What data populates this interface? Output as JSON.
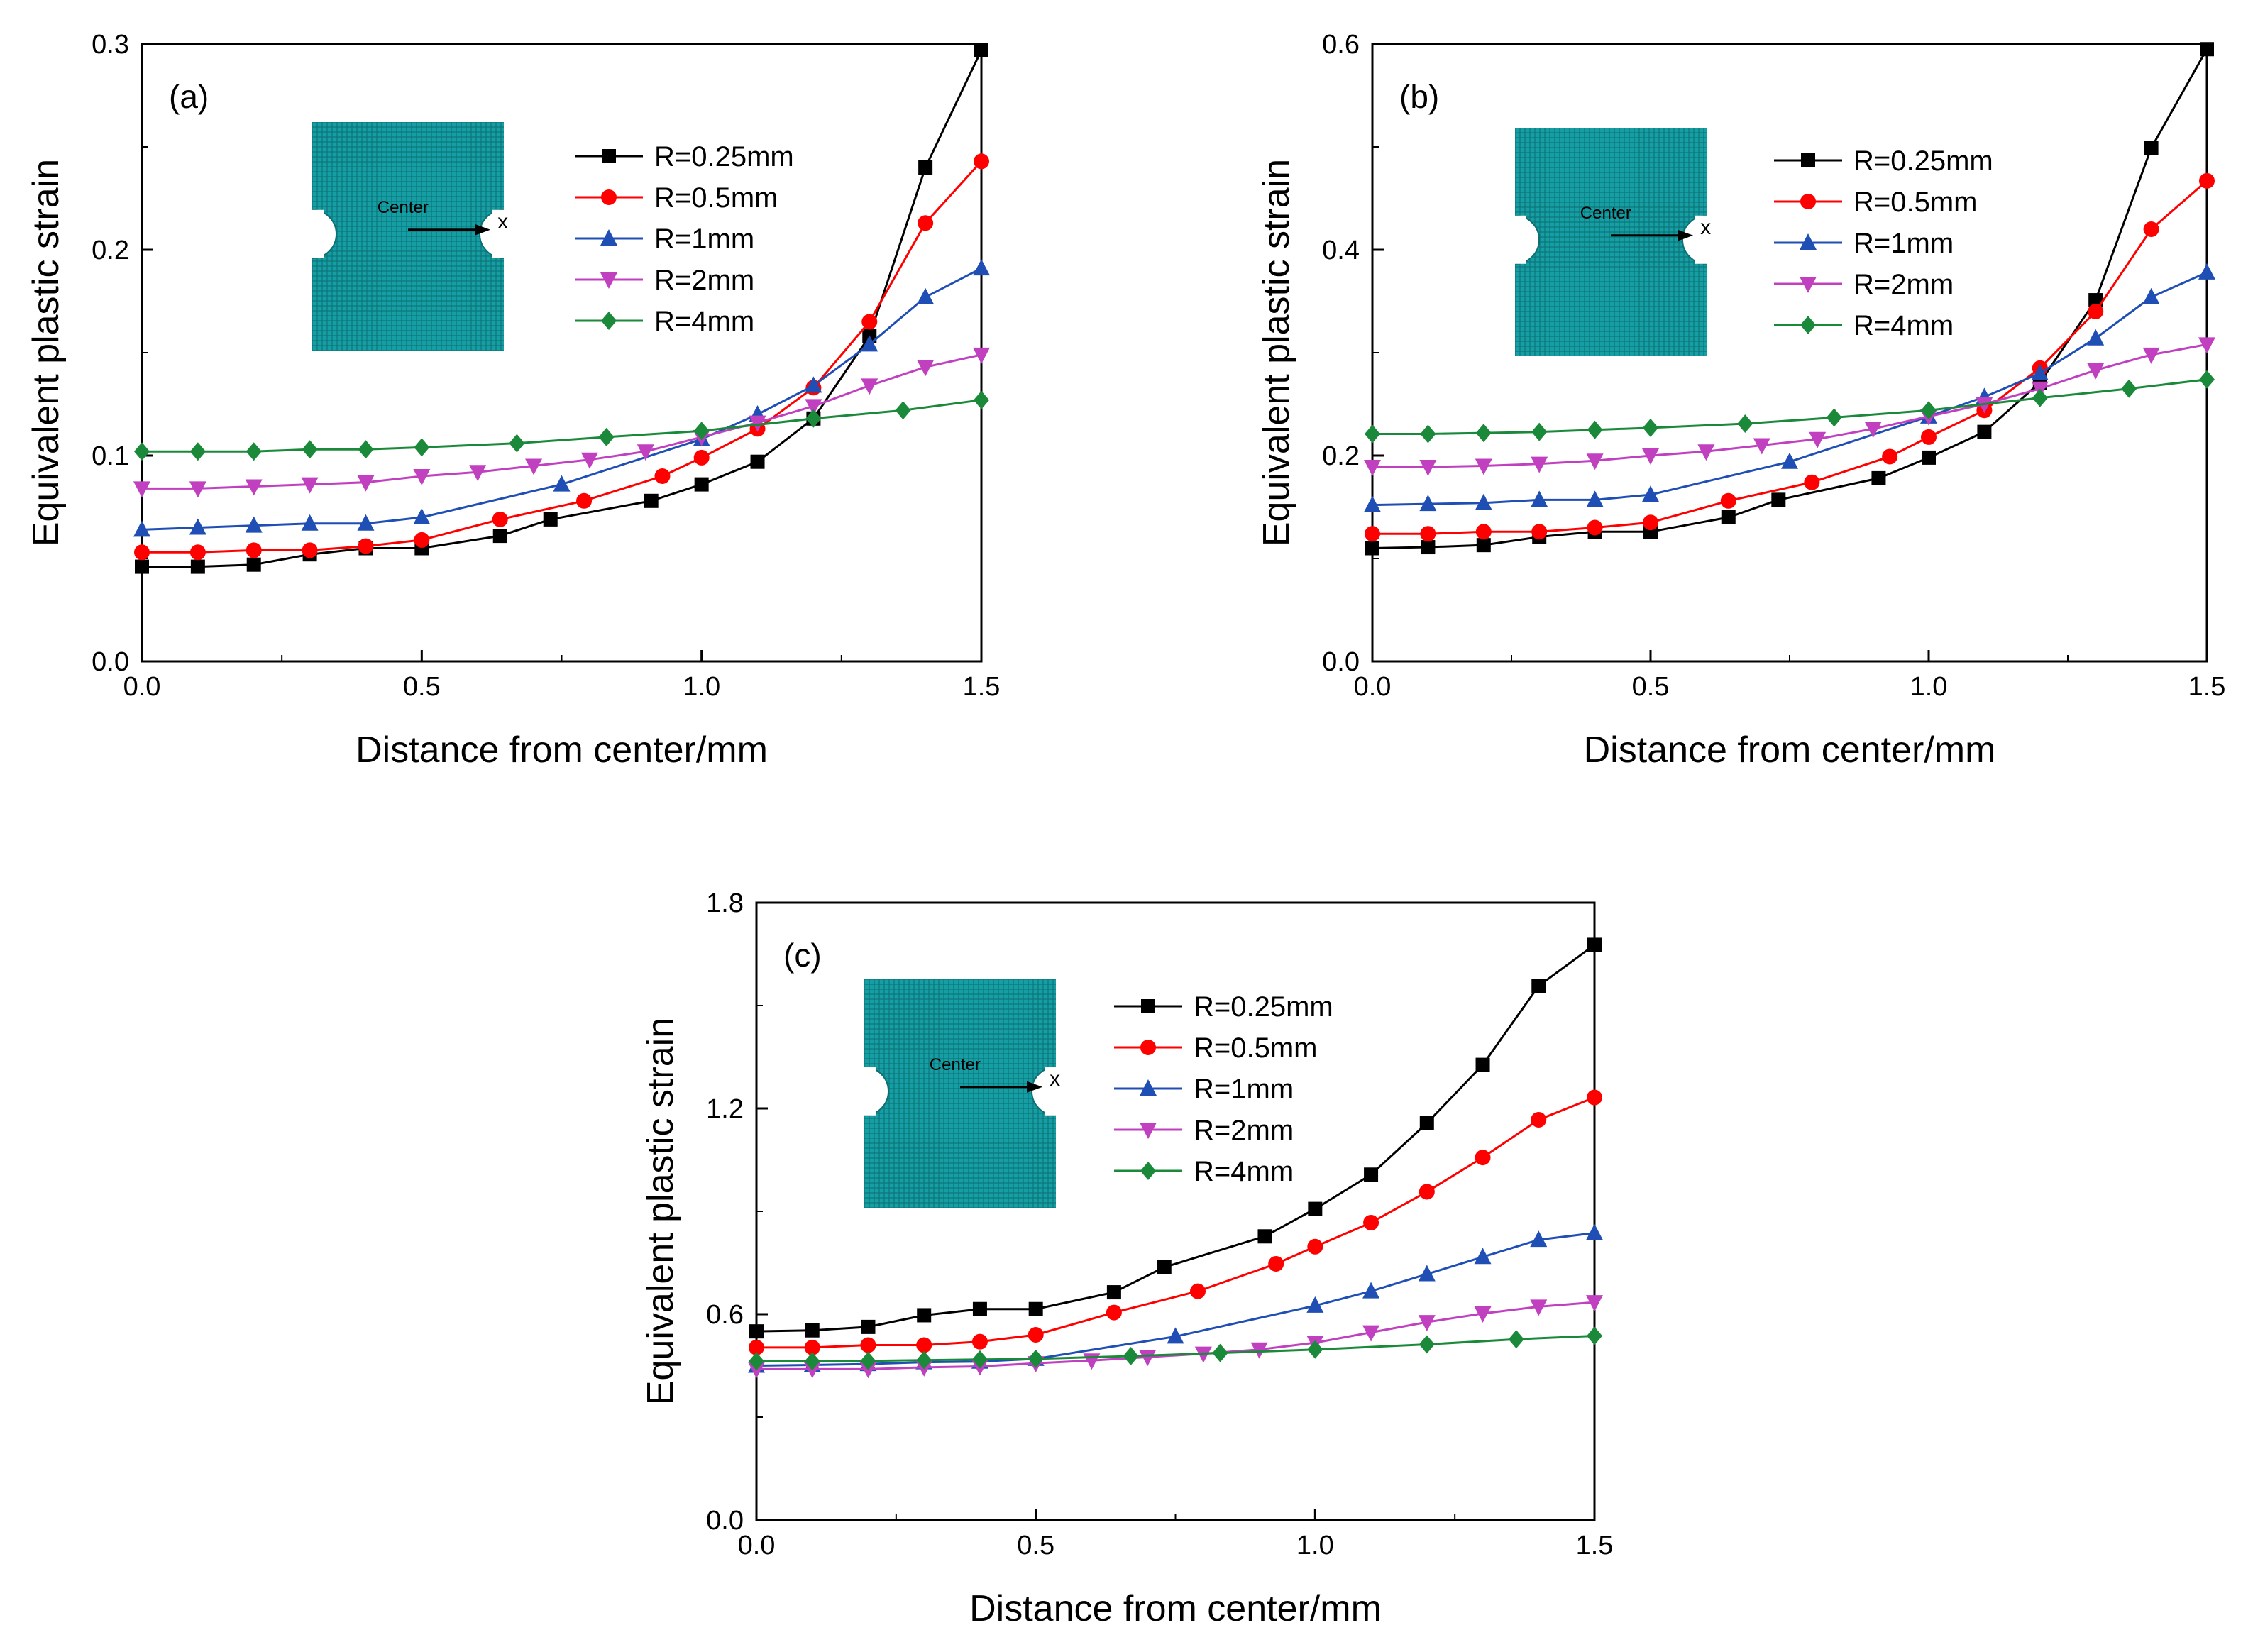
{
  "figure": {
    "x_unit_note": "Distance from center/mm"
  },
  "chart_data": [
    {
      "type": "line",
      "panel_label": "(a)",
      "xlabel": "Distance from center/mm",
      "ylabel": "Equivalent plastic strain",
      "xlim": [
        0,
        1.5
      ],
      "ylim": [
        0,
        0.3
      ],
      "xticks": [
        "0.0",
        "0.5",
        "1.0",
        "1.5"
      ],
      "yticks": [
        "0.0",
        "0.1",
        "0.2",
        "0.3"
      ],
      "legend_position": "upper-middle",
      "inset": {
        "center_label": "Center",
        "axis_label": "x"
      },
      "series": [
        {
          "name": "R=0.25mm",
          "color": "#000000",
          "marker": "square",
          "x": [
            0,
            0.1,
            0.2,
            0.3,
            0.4,
            0.5,
            0.64,
            0.73,
            0.91,
            1.0,
            1.1,
            1.2,
            1.3,
            1.4,
            1.5
          ],
          "y": [
            0.046,
            0.046,
            0.047,
            0.052,
            0.055,
            0.055,
            0.061,
            0.069,
            0.078,
            0.086,
            0.097,
            0.118,
            0.158,
            0.24,
            0.297
          ]
        },
        {
          "name": "R=0.5mm",
          "color": "#ff0000",
          "marker": "circle",
          "x": [
            0,
            0.1,
            0.2,
            0.3,
            0.4,
            0.5,
            0.64,
            0.79,
            0.93,
            1.0,
            1.1,
            1.2,
            1.3,
            1.4,
            1.5
          ],
          "y": [
            0.053,
            0.053,
            0.054,
            0.054,
            0.056,
            0.059,
            0.069,
            0.078,
            0.09,
            0.099,
            0.113,
            0.133,
            0.165,
            0.213,
            0.243
          ]
        },
        {
          "name": "R=1mm",
          "color": "#1f4fb4",
          "marker": "triangle-up",
          "x": [
            0,
            0.1,
            0.2,
            0.3,
            0.4,
            0.5,
            0.75,
            1.0,
            1.1,
            1.2,
            1.3,
            1.4,
            1.5
          ],
          "y": [
            0.064,
            0.065,
            0.066,
            0.067,
            0.067,
            0.07,
            0.086,
            0.108,
            0.12,
            0.134,
            0.154,
            0.177,
            0.191
          ]
        },
        {
          "name": "R=2mm",
          "color": "#c040c0",
          "marker": "triangle-down",
          "x": [
            0,
            0.1,
            0.2,
            0.3,
            0.4,
            0.5,
            0.6,
            0.7,
            0.8,
            0.9,
            1.0,
            1.1,
            1.2,
            1.3,
            1.4,
            1.5
          ],
          "y": [
            0.084,
            0.084,
            0.085,
            0.086,
            0.087,
            0.09,
            0.092,
            0.095,
            0.098,
            0.102,
            0.109,
            0.116,
            0.124,
            0.134,
            0.143,
            0.149
          ]
        },
        {
          "name": "R=4mm",
          "color": "#1a8a3a",
          "marker": "diamond",
          "x": [
            0,
            0.1,
            0.2,
            0.3,
            0.4,
            0.5,
            0.67,
            0.83,
            1.0,
            1.2,
            1.36,
            1.5
          ],
          "y": [
            0.102,
            0.102,
            0.102,
            0.103,
            0.103,
            0.104,
            0.106,
            0.109,
            0.112,
            0.118,
            0.122,
            0.127
          ]
        }
      ]
    },
    {
      "type": "line",
      "panel_label": "(b)",
      "xlabel": "Distance from center/mm",
      "ylabel": "Equivalent plastic strain",
      "xlim": [
        0,
        1.5
      ],
      "ylim": [
        0,
        0.6
      ],
      "xticks": [
        "0.0",
        "0.5",
        "1.0",
        "1.5"
      ],
      "yticks": [
        "0.0",
        "0.2",
        "0.4",
        "0.6"
      ],
      "legend_position": "upper-middle",
      "inset": {
        "center_label": "Center",
        "axis_label": "x"
      },
      "series": [
        {
          "name": "R=0.25mm",
          "color": "#000000",
          "marker": "square",
          "x": [
            0,
            0.1,
            0.2,
            0.3,
            0.4,
            0.5,
            0.64,
            0.73,
            0.91,
            1.0,
            1.1,
            1.2,
            1.3,
            1.4,
            1.5
          ],
          "y": [
            0.11,
            0.111,
            0.113,
            0.121,
            0.126,
            0.126,
            0.14,
            0.157,
            0.178,
            0.198,
            0.223,
            0.271,
            0.351,
            0.499,
            0.595
          ]
        },
        {
          "name": "R=0.5mm",
          "color": "#ff0000",
          "marker": "circle",
          "x": [
            0,
            0.1,
            0.2,
            0.3,
            0.4,
            0.5,
            0.64,
            0.79,
            0.93,
            1.0,
            1.1,
            1.2,
            1.3,
            1.4,
            1.5
          ],
          "y": [
            0.124,
            0.124,
            0.126,
            0.126,
            0.13,
            0.135,
            0.156,
            0.174,
            0.199,
            0.218,
            0.244,
            0.285,
            0.34,
            0.42,
            0.467
          ]
        },
        {
          "name": "R=1mm",
          "color": "#1f4fb4",
          "marker": "triangle-up",
          "x": [
            0,
            0.1,
            0.2,
            0.3,
            0.4,
            0.5,
            0.75,
            1.0,
            1.1,
            1.2,
            1.3,
            1.4,
            1.5
          ],
          "y": [
            0.152,
            0.153,
            0.154,
            0.157,
            0.157,
            0.162,
            0.194,
            0.238,
            0.257,
            0.28,
            0.314,
            0.354,
            0.378
          ]
        },
        {
          "name": "R=2mm",
          "color": "#c040c0",
          "marker": "triangle-down",
          "x": [
            0,
            0.1,
            0.2,
            0.3,
            0.4,
            0.5,
            0.6,
            0.7,
            0.8,
            0.9,
            1.0,
            1.1,
            1.2,
            1.3,
            1.4,
            1.5
          ],
          "y": [
            0.189,
            0.189,
            0.19,
            0.192,
            0.195,
            0.2,
            0.204,
            0.21,
            0.216,
            0.226,
            0.238,
            0.25,
            0.265,
            0.283,
            0.298,
            0.308
          ]
        },
        {
          "name": "R=4mm",
          "color": "#1a8a3a",
          "marker": "diamond",
          "x": [
            0,
            0.1,
            0.2,
            0.3,
            0.4,
            0.5,
            0.67,
            0.83,
            1.0,
            1.2,
            1.36,
            1.5
          ],
          "y": [
            0.221,
            0.221,
            0.222,
            0.223,
            0.225,
            0.227,
            0.231,
            0.237,
            0.244,
            0.256,
            0.265,
            0.274
          ]
        }
      ]
    },
    {
      "type": "line",
      "panel_label": "(c)",
      "xlabel": "Distance from center/mm",
      "ylabel": "Equivalent plastic strain",
      "xlim": [
        0,
        1.5
      ],
      "ylim": [
        0,
        1.8
      ],
      "xticks": [
        "0.0",
        "0.5",
        "1.0",
        "1.5"
      ],
      "yticks": [
        "0.0",
        "0.6",
        "1.2",
        "1.8"
      ],
      "legend_position": "upper-middle",
      "inset": {
        "center_label": "Center",
        "axis_label": "x"
      },
      "series": [
        {
          "name": "R=0.25mm",
          "color": "#000000",
          "marker": "square",
          "x": [
            0,
            0.1,
            0.2,
            0.3,
            0.4,
            0.5,
            0.64,
            0.73,
            0.91,
            1.0,
            1.1,
            1.2,
            1.3,
            1.4,
            1.5
          ],
          "y": [
            0.55,
            0.553,
            0.563,
            0.597,
            0.615,
            0.615,
            0.664,
            0.737,
            0.827,
            0.907,
            1.007,
            1.157,
            1.327,
            1.557,
            1.677
          ]
        },
        {
          "name": "R=0.5mm",
          "color": "#ff0000",
          "marker": "circle",
          "x": [
            0,
            0.1,
            0.2,
            0.3,
            0.4,
            0.5,
            0.64,
            0.79,
            0.93,
            1.0,
            1.1,
            1.2,
            1.3,
            1.4,
            1.5
          ],
          "y": [
            0.503,
            0.503,
            0.51,
            0.51,
            0.52,
            0.54,
            0.605,
            0.667,
            0.747,
            0.797,
            0.867,
            0.957,
            1.057,
            1.167,
            1.232
          ]
        },
        {
          "name": "R=1mm",
          "color": "#1f4fb4",
          "marker": "triangle-up",
          "x": [
            0,
            0.1,
            0.2,
            0.3,
            0.4,
            0.5,
            0.75,
            1.0,
            1.1,
            1.2,
            1.3,
            1.4,
            1.5
          ],
          "y": [
            0.45,
            0.452,
            0.455,
            0.46,
            0.462,
            0.47,
            0.535,
            0.625,
            0.667,
            0.717,
            0.767,
            0.817,
            0.837
          ]
        },
        {
          "name": "R=2mm",
          "color": "#c040c0",
          "marker": "triangle-down",
          "x": [
            0,
            0.1,
            0.2,
            0.3,
            0.4,
            0.5,
            0.6,
            0.7,
            0.8,
            0.9,
            1.0,
            1.1,
            1.2,
            1.3,
            1.4,
            1.5
          ],
          "y": [
            0.44,
            0.44,
            0.44,
            0.445,
            0.448,
            0.457,
            0.465,
            0.475,
            0.485,
            0.497,
            0.517,
            0.547,
            0.577,
            0.602,
            0.622,
            0.635
          ]
        },
        {
          "name": "R=4mm",
          "color": "#1a8a3a",
          "marker": "diamond",
          "x": [
            0,
            0.1,
            0.2,
            0.3,
            0.4,
            0.5,
            0.67,
            0.83,
            1.0,
            1.2,
            1.36,
            1.5
          ],
          "y": [
            0.463,
            0.463,
            0.464,
            0.466,
            0.468,
            0.47,
            0.478,
            0.487,
            0.497,
            0.512,
            0.527,
            0.537
          ]
        }
      ]
    }
  ]
}
